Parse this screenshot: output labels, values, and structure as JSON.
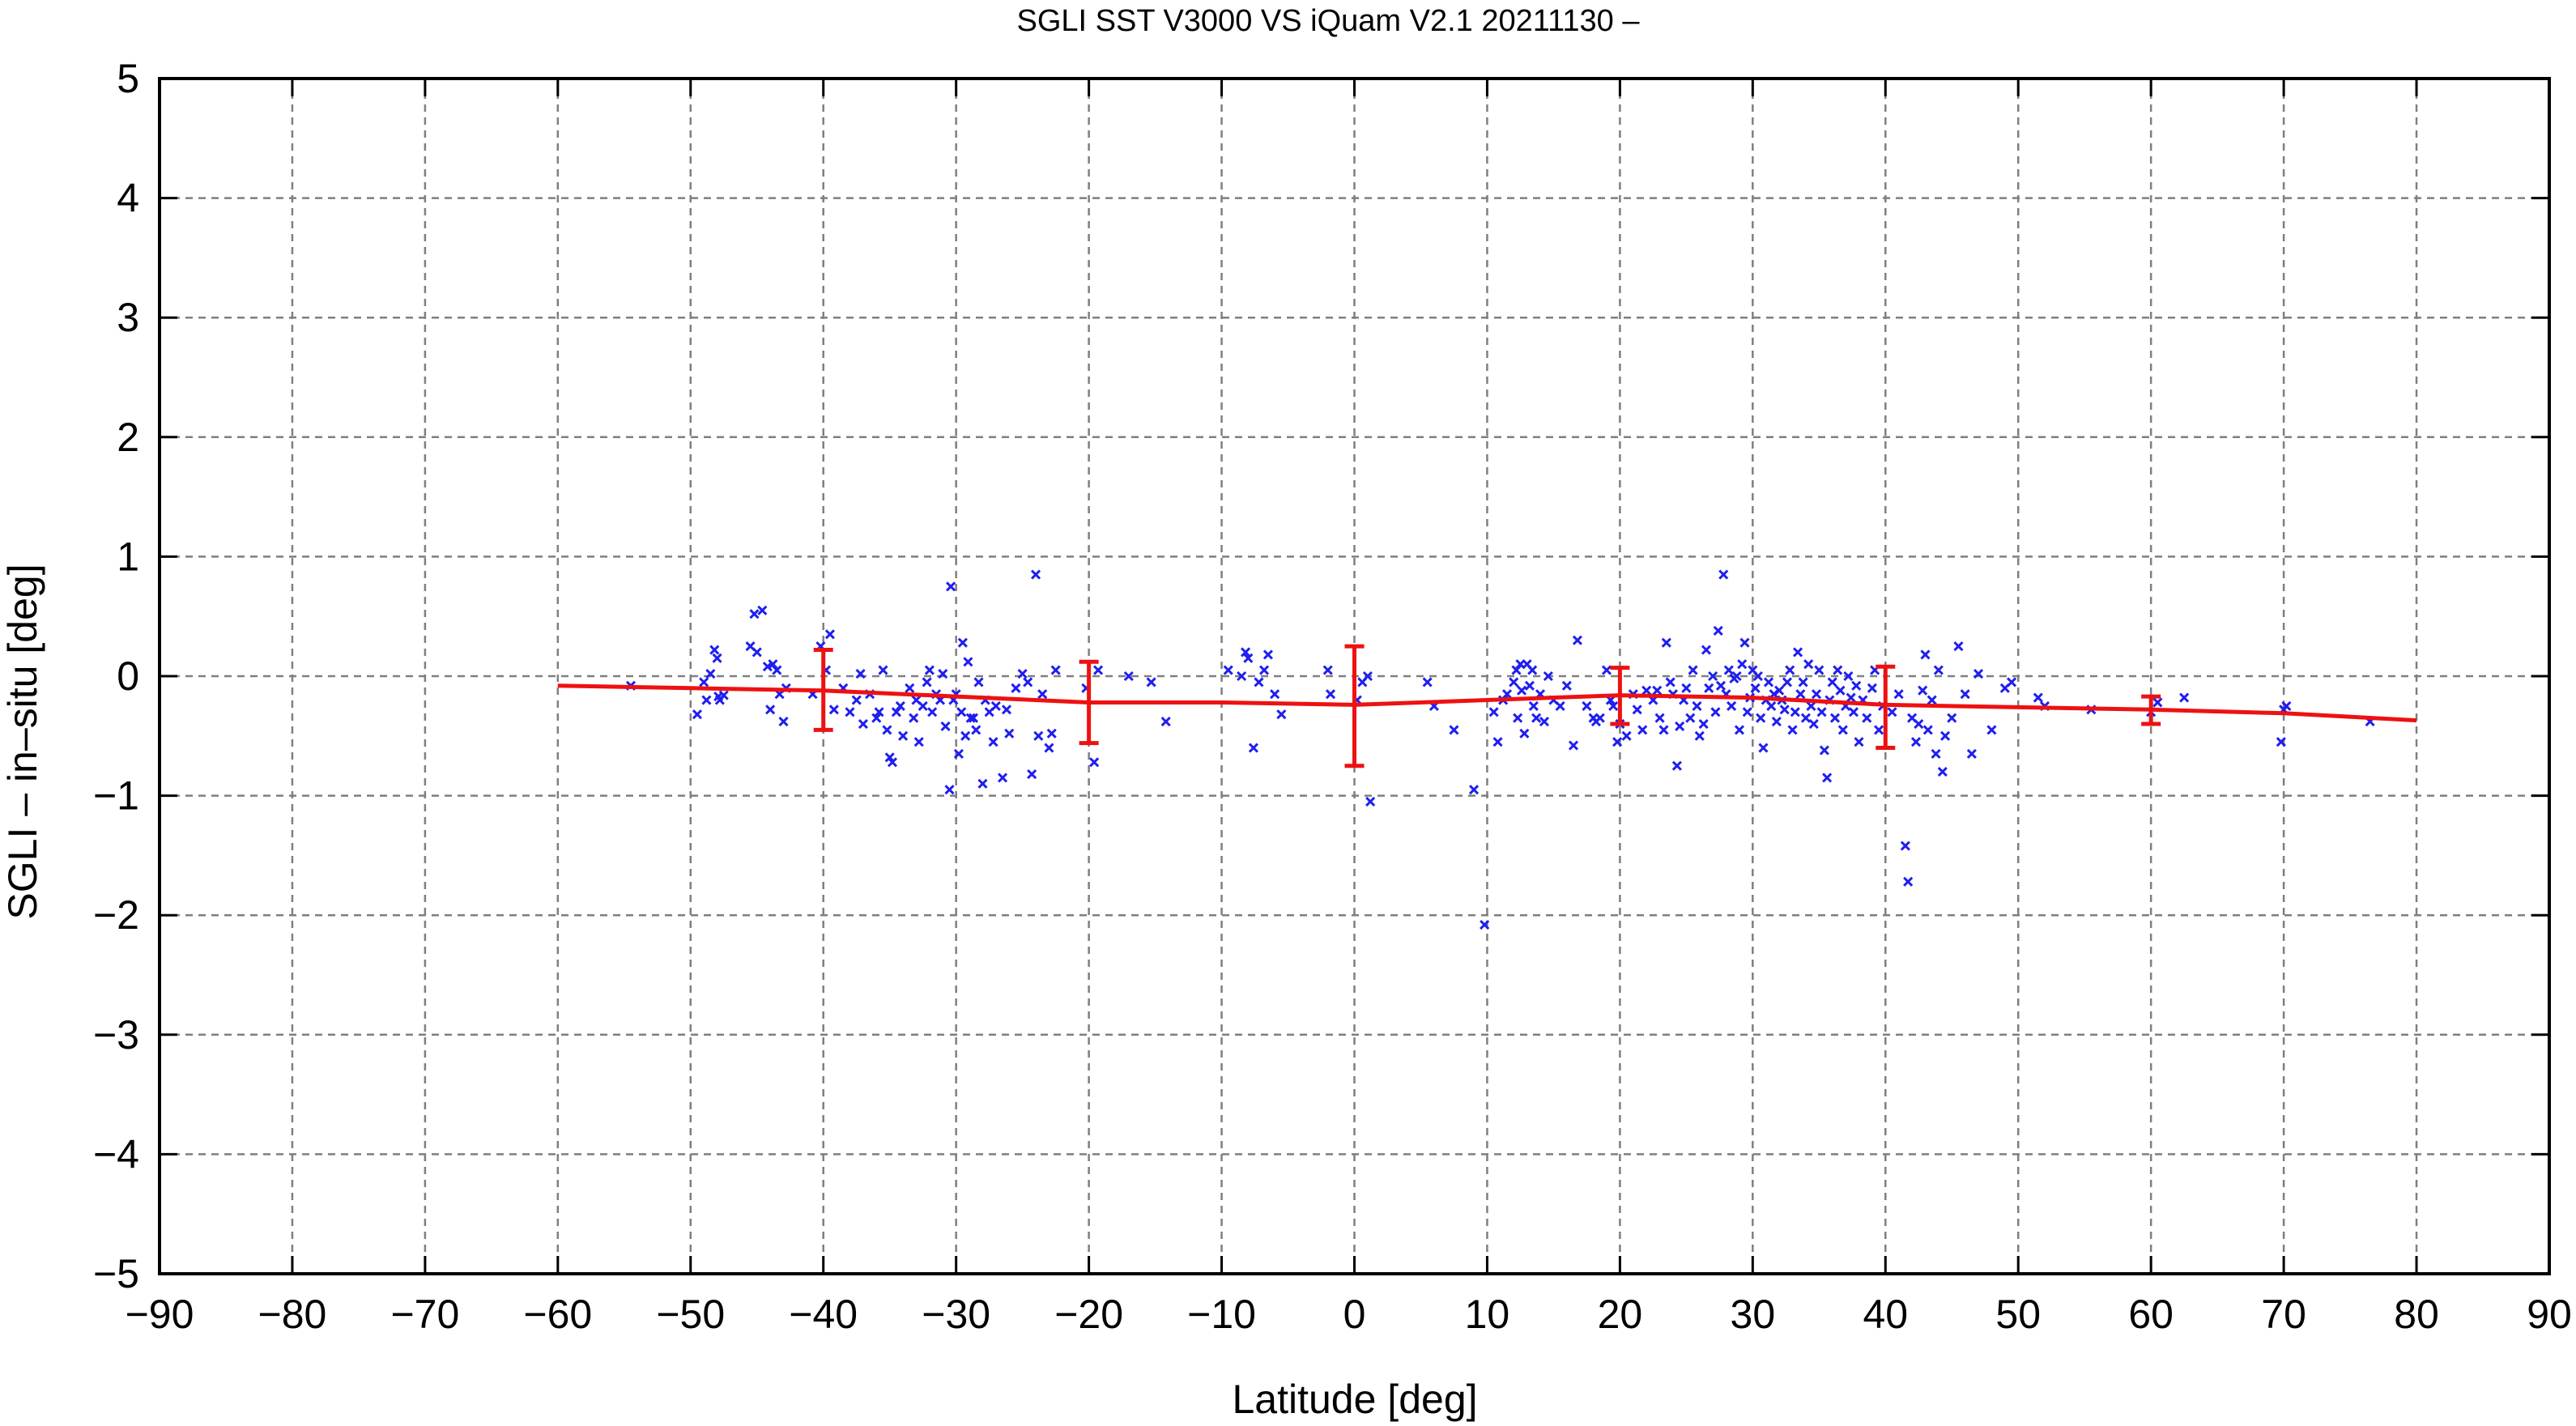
{
  "chart_data": {
    "type": "scatter",
    "title": "SGLI SST V3000 VS iQuam V2.1 20211130 –",
    "xlabel": "Latitude [deg]",
    "ylabel": "SGLI – in–situ [deg]",
    "xlim": [
      -90,
      90
    ],
    "ylim": [
      -5,
      5
    ],
    "x_ticks": [
      -90,
      -80,
      -70,
      -60,
      -50,
      -40,
      -30,
      -20,
      -10,
      0,
      10,
      20,
      30,
      40,
      50,
      60,
      70,
      80,
      90
    ],
    "x_tick_labels": [
      "−90",
      "−80",
      "−70",
      "−60",
      "−50",
      "−40",
      "−30",
      "−20",
      "−10",
      "0",
      "10",
      "20",
      "30",
      "40",
      "50",
      "60",
      "70",
      "80",
      "90"
    ],
    "y_ticks": [
      -5,
      -4,
      -3,
      -2,
      -1,
      0,
      1,
      2,
      3,
      4,
      5
    ],
    "y_tick_labels": [
      "−5",
      "−4",
      "−3",
      "−2",
      "−1",
      "0",
      "1",
      "2",
      "3",
      "4",
      "5"
    ],
    "grid": true,
    "colors": {
      "points": "#1f1fee",
      "fit": "#ee1111",
      "grid": "#7f7f7f"
    },
    "series": [
      {
        "kind": "points",
        "marker": "x",
        "points": [
          [
            -54.5,
            -0.08
          ],
          [
            -49.5,
            -0.32
          ],
          [
            -49.0,
            -0.05
          ],
          [
            -48.8,
            -0.2
          ],
          [
            -48.5,
            0.02
          ],
          [
            -48.2,
            0.22
          ],
          [
            -48.0,
            0.15
          ],
          [
            -47.9,
            -0.17
          ],
          [
            -47.8,
            -0.2
          ],
          [
            -47.5,
            -0.16
          ],
          [
            -45.5,
            0.25
          ],
          [
            -45.2,
            0.52
          ],
          [
            -45.0,
            0.2
          ],
          [
            -44.6,
            0.55
          ],
          [
            -44.2,
            0.08
          ],
          [
            -44.0,
            -0.28
          ],
          [
            -43.8,
            0.1
          ],
          [
            -43.5,
            0.05
          ],
          [
            -43.3,
            -0.15
          ],
          [
            -43.0,
            -0.38
          ],
          [
            -42.8,
            -0.1
          ],
          [
            -40.8,
            -0.15
          ],
          [
            -40.2,
            0.25
          ],
          [
            -39.8,
            0.05
          ],
          [
            -39.5,
            0.35
          ],
          [
            -39.2,
            -0.28
          ],
          [
            -38.5,
            -0.1
          ],
          [
            -38.0,
            -0.3
          ],
          [
            -37.5,
            -0.2
          ],
          [
            -37.2,
            0.02
          ],
          [
            -37.0,
            -0.4
          ],
          [
            -36.5,
            -0.15
          ],
          [
            -36.0,
            -0.35
          ],
          [
            -35.8,
            -0.3
          ],
          [
            -35.5,
            0.05
          ],
          [
            -35.2,
            -0.45
          ],
          [
            -35.0,
            -0.68
          ],
          [
            -34.8,
            -0.72
          ],
          [
            -34.5,
            -0.3
          ],
          [
            -34.2,
            -0.25
          ],
          [
            -34.0,
            -0.5
          ],
          [
            -33.5,
            -0.1
          ],
          [
            -33.2,
            -0.35
          ],
          [
            -33.0,
            -0.2
          ],
          [
            -32.8,
            -0.55
          ],
          [
            -32.5,
            -0.25
          ],
          [
            -32.2,
            -0.05
          ],
          [
            -32.0,
            0.05
          ],
          [
            -31.8,
            -0.3
          ],
          [
            -31.5,
            -0.15
          ],
          [
            -31.2,
            -0.2
          ],
          [
            -31.0,
            0.02
          ],
          [
            -30.8,
            -0.42
          ],
          [
            -30.5,
            -0.95
          ],
          [
            -30.4,
            0.75
          ],
          [
            -30.2,
            -0.2
          ],
          [
            -30.0,
            -0.15
          ],
          [
            -29.8,
            -0.65
          ],
          [
            -29.6,
            -0.3
          ],
          [
            -29.5,
            0.28
          ],
          [
            -29.3,
            -0.5
          ],
          [
            -29.1,
            0.12
          ],
          [
            -28.9,
            -0.35
          ],
          [
            -28.7,
            -0.35
          ],
          [
            -28.5,
            -0.45
          ],
          [
            -28.3,
            -0.05
          ],
          [
            -28.0,
            -0.9
          ],
          [
            -27.8,
            -0.2
          ],
          [
            -27.5,
            -0.3
          ],
          [
            -27.2,
            -0.55
          ],
          [
            -27.0,
            -0.25
          ],
          [
            -26.5,
            -0.85
          ],
          [
            -26.2,
            -0.28
          ],
          [
            -26.0,
            -0.48
          ],
          [
            -25.5,
            -0.1
          ],
          [
            -25.0,
            0.02
          ],
          [
            -24.6,
            -0.05
          ],
          [
            -24.3,
            -0.82
          ],
          [
            -24.0,
            0.85
          ],
          [
            -23.8,
            -0.5
          ],
          [
            -23.5,
            -0.15
          ],
          [
            -23.0,
            -0.6
          ],
          [
            -22.8,
            -0.48
          ],
          [
            -22.5,
            0.05
          ],
          [
            -20.2,
            -0.1
          ],
          [
            -19.6,
            -0.72
          ],
          [
            -19.3,
            0.05
          ],
          [
            -17.0,
            0.0
          ],
          [
            -15.3,
            -0.05
          ],
          [
            -14.2,
            -0.38
          ],
          [
            -9.5,
            0.05
          ],
          [
            -8.5,
            0.0
          ],
          [
            -8.2,
            0.2
          ],
          [
            -8.0,
            0.15
          ],
          [
            -7.6,
            -0.6
          ],
          [
            -7.2,
            -0.05
          ],
          [
            -6.8,
            0.05
          ],
          [
            -6.5,
            0.18
          ],
          [
            -6.0,
            -0.15
          ],
          [
            -5.5,
            -0.32
          ],
          [
            -2.0,
            0.05
          ],
          [
            -1.8,
            -0.15
          ],
          [
            0.2,
            -0.2
          ],
          [
            0.6,
            -0.05
          ],
          [
            1.0,
            0.0
          ],
          [
            1.2,
            -1.05
          ],
          [
            5.5,
            -0.05
          ],
          [
            6.0,
            -0.25
          ],
          [
            7.5,
            -0.45
          ],
          [
            9.0,
            -0.95
          ],
          [
            9.8,
            -2.08
          ],
          [
            10.5,
            -0.3
          ],
          [
            10.8,
            -0.55
          ],
          [
            11.2,
            -0.2
          ],
          [
            11.5,
            -0.15
          ],
          [
            12.0,
            -0.05
          ],
          [
            12.2,
            0.05
          ],
          [
            12.3,
            -0.35
          ],
          [
            12.5,
            0.1
          ],
          [
            12.6,
            -0.12
          ],
          [
            12.8,
            -0.48
          ],
          [
            13.0,
            0.1
          ],
          [
            13.2,
            -0.08
          ],
          [
            13.4,
            0.05
          ],
          [
            13.5,
            -0.25
          ],
          [
            13.7,
            -0.35
          ],
          [
            14.0,
            -0.15
          ],
          [
            14.3,
            -0.38
          ],
          [
            14.6,
            0.0
          ],
          [
            15.0,
            -0.2
          ],
          [
            15.5,
            -0.25
          ],
          [
            16.0,
            -0.08
          ],
          [
            16.5,
            -0.58
          ],
          [
            16.8,
            0.3
          ],
          [
            17.5,
            -0.25
          ],
          [
            18.0,
            -0.35
          ],
          [
            18.2,
            -0.38
          ],
          [
            18.5,
            -0.35
          ],
          [
            19.0,
            0.05
          ],
          [
            19.3,
            -0.2
          ],
          [
            19.5,
            -0.25
          ],
          [
            19.8,
            -0.55
          ],
          [
            20.0,
            -0.4
          ],
          [
            20.5,
            -0.5
          ],
          [
            21.0,
            -0.15
          ],
          [
            21.3,
            -0.28
          ],
          [
            21.7,
            -0.45
          ],
          [
            22.0,
            -0.12
          ],
          [
            22.5,
            -0.2
          ],
          [
            22.8,
            -0.12
          ],
          [
            23.0,
            -0.35
          ],
          [
            23.3,
            -0.45
          ],
          [
            23.5,
            0.28
          ],
          [
            23.8,
            -0.05
          ],
          [
            24.0,
            -0.15
          ],
          [
            24.3,
            -0.75
          ],
          [
            24.5,
            -0.42
          ],
          [
            24.8,
            -0.2
          ],
          [
            25.0,
            -0.1
          ],
          [
            25.3,
            -0.35
          ],
          [
            25.5,
            0.05
          ],
          [
            25.8,
            -0.25
          ],
          [
            26.0,
            -0.5
          ],
          [
            26.3,
            -0.4
          ],
          [
            26.5,
            0.22
          ],
          [
            26.7,
            -0.1
          ],
          [
            27.0,
            0.0
          ],
          [
            27.2,
            -0.3
          ],
          [
            27.4,
            0.38
          ],
          [
            27.6,
            -0.08
          ],
          [
            27.8,
            0.85
          ],
          [
            28.0,
            -0.15
          ],
          [
            28.2,
            0.05
          ],
          [
            28.4,
            -0.25
          ],
          [
            28.6,
            -0.02
          ],
          [
            28.8,
            0.0
          ],
          [
            29.0,
            -0.45
          ],
          [
            29.2,
            0.1
          ],
          [
            29.4,
            0.28
          ],
          [
            29.6,
            -0.3
          ],
          [
            29.8,
            -0.18
          ],
          [
            30.0,
            0.05
          ],
          [
            30.2,
            -0.1
          ],
          [
            30.4,
            0.0
          ],
          [
            30.6,
            -0.35
          ],
          [
            30.8,
            -0.6
          ],
          [
            31.0,
            -0.2
          ],
          [
            31.2,
            -0.05
          ],
          [
            31.4,
            -0.25
          ],
          [
            31.6,
            -0.15
          ],
          [
            31.8,
            -0.38
          ],
          [
            32.0,
            -0.12
          ],
          [
            32.2,
            -0.2
          ],
          [
            32.4,
            -0.28
          ],
          [
            32.6,
            -0.05
          ],
          [
            32.8,
            0.05
          ],
          [
            33.0,
            -0.45
          ],
          [
            33.2,
            -0.3
          ],
          [
            33.4,
            0.2
          ],
          [
            33.6,
            -0.15
          ],
          [
            33.8,
            -0.05
          ],
          [
            34.0,
            -0.35
          ],
          [
            34.2,
            0.1
          ],
          [
            34.4,
            -0.25
          ],
          [
            34.6,
            -0.4
          ],
          [
            34.8,
            -0.15
          ],
          [
            35.0,
            0.05
          ],
          [
            35.2,
            -0.3
          ],
          [
            35.4,
            -0.62
          ],
          [
            35.6,
            -0.85
          ],
          [
            35.8,
            -0.2
          ],
          [
            36.0,
            -0.05
          ],
          [
            36.2,
            -0.35
          ],
          [
            36.4,
            0.05
          ],
          [
            36.6,
            -0.12
          ],
          [
            36.8,
            -0.45
          ],
          [
            37.0,
            -0.25
          ],
          [
            37.2,
            0.0
          ],
          [
            37.4,
            -0.18
          ],
          [
            37.6,
            -0.3
          ],
          [
            37.8,
            -0.08
          ],
          [
            38.0,
            -0.55
          ],
          [
            38.3,
            -0.2
          ],
          [
            38.6,
            -0.35
          ],
          [
            39.0,
            -0.1
          ],
          [
            39.2,
            0.05
          ],
          [
            39.5,
            -0.45
          ],
          [
            39.8,
            -0.25
          ],
          [
            40.5,
            -0.3
          ],
          [
            41.0,
            -0.15
          ],
          [
            41.5,
            -1.42
          ],
          [
            41.7,
            -1.72
          ],
          [
            42.0,
            -0.35
          ],
          [
            42.3,
            -0.55
          ],
          [
            42.5,
            -0.4
          ],
          [
            42.8,
            -0.12
          ],
          [
            43.0,
            0.18
          ],
          [
            43.2,
            -0.45
          ],
          [
            43.5,
            -0.2
          ],
          [
            43.8,
            -0.65
          ],
          [
            44.0,
            0.05
          ],
          [
            44.3,
            -0.8
          ],
          [
            44.5,
            -0.5
          ],
          [
            45.0,
            -0.35
          ],
          [
            45.5,
            0.25
          ],
          [
            46.0,
            -0.15
          ],
          [
            46.5,
            -0.65
          ],
          [
            47.0,
            0.02
          ],
          [
            48.0,
            -0.45
          ],
          [
            49.0,
            -0.1
          ],
          [
            49.5,
            -0.05
          ],
          [
            51.5,
            -0.18
          ],
          [
            52.0,
            -0.25
          ],
          [
            55.5,
            -0.28
          ],
          [
            60.0,
            -0.3
          ],
          [
            60.5,
            -0.22
          ],
          [
            62.5,
            -0.18
          ],
          [
            69.8,
            -0.55
          ],
          [
            70.0,
            -0.28
          ],
          [
            70.2,
            -0.25
          ],
          [
            76.5,
            -0.38
          ]
        ]
      },
      {
        "kind": "fit-line",
        "x": [
          -60,
          -50,
          -40,
          -30,
          -20,
          -10,
          0,
          10,
          20,
          30,
          40,
          50,
          60,
          70,
          80
        ],
        "y": [
          -0.08,
          -0.1,
          -0.12,
          -0.17,
          -0.22,
          -0.22,
          -0.24,
          -0.2,
          -0.16,
          -0.18,
          -0.24,
          -0.26,
          -0.28,
          -0.31,
          -0.37
        ]
      },
      {
        "kind": "error-bars",
        "x": [
          -40,
          -20,
          0,
          20,
          40,
          60
        ],
        "center": [
          -0.12,
          -0.22,
          -0.24,
          -0.16,
          -0.24,
          -0.28
        ],
        "lower": [
          -0.45,
          -0.56,
          -0.75,
          -0.4,
          -0.6,
          -0.4
        ],
        "upper": [
          0.22,
          0.12,
          0.25,
          0.07,
          0.08,
          -0.17
        ]
      }
    ]
  }
}
